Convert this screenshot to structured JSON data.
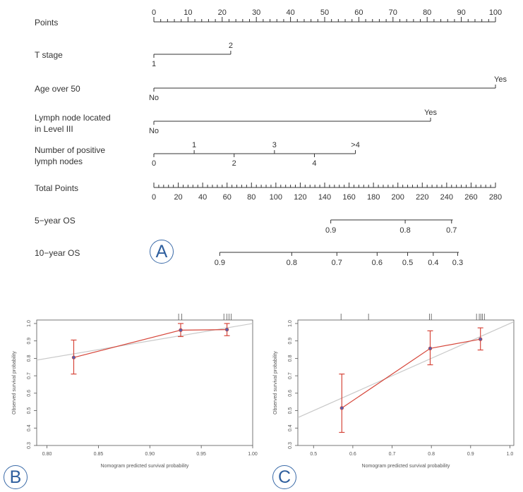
{
  "panels": {
    "a_letter": "A",
    "b_letter": "B",
    "c_letter": "C"
  },
  "chart_data": [
    {
      "type": "nomogram",
      "panel": "A",
      "rows": [
        {
          "label": [
            "Points"
          ],
          "kind": "axis",
          "points_range": [
            0,
            100
          ],
          "ticks": [
            0,
            10,
            20,
            30,
            40,
            50,
            60,
            70,
            80,
            90,
            100
          ],
          "minor_step": 2
        },
        {
          "label": [
            "T stage"
          ],
          "kind": "variable",
          "levels": [
            {
              "text": "1",
              "points": 0,
              "side": "below"
            },
            {
              "text": "2",
              "points": 22.5,
              "side": "above"
            }
          ]
        },
        {
          "label": [
            "Age over 50"
          ],
          "kind": "variable",
          "levels": [
            {
              "text": "No",
              "points": 0,
              "side": "below"
            },
            {
              "text": "Yes",
              "points": 100,
              "side": "above"
            }
          ]
        },
        {
          "label": [
            "Lymph node located",
            "in Level III"
          ],
          "kind": "variable",
          "levels": [
            {
              "text": "No",
              "points": 0,
              "side": "below"
            },
            {
              "text": "Yes",
              "points": 81,
              "side": "above"
            }
          ]
        },
        {
          "label": [
            "Number of positive",
            "lymph nodes"
          ],
          "kind": "variable",
          "levels": [
            {
              "text": "0",
              "points": 0,
              "side": "below"
            },
            {
              "text": "1",
              "points": 11.8,
              "side": "above"
            },
            {
              "text": "2",
              "points": 23.5,
              "side": "below"
            },
            {
              "text": "3",
              "points": 35.3,
              "side": "above"
            },
            {
              "text": "4",
              "points": 47,
              "side": "below"
            },
            {
              "text": ">4",
              "points": 59,
              "side": "above"
            }
          ]
        },
        {
          "label": [
            "Total Points"
          ],
          "kind": "axis",
          "total_range": [
            0,
            280
          ],
          "ticks": [
            0,
            20,
            40,
            60,
            80,
            100,
            120,
            140,
            160,
            180,
            200,
            220,
            240,
            260,
            280
          ],
          "minor_step": 4
        },
        {
          "label": [
            "5−year OS"
          ],
          "kind": "prob",
          "range_total": [
            145,
            245
          ],
          "ticks": [
            {
              "text": "0.9",
              "total": 145
            },
            {
              "text": "0.8",
              "total": 206
            },
            {
              "text": "0.7",
              "total": 244
            }
          ]
        },
        {
          "label": [
            "10−year OS"
          ],
          "kind": "prob",
          "range_total": [
            54,
            250
          ],
          "ticks": [
            {
              "text": "0.9",
              "total": 54
            },
            {
              "text": "0.8",
              "total": 113
            },
            {
              "text": "0.7",
              "total": 150
            },
            {
              "text": "0.6",
              "total": 183
            },
            {
              "text": "0.5",
              "total": 208
            },
            {
              "text": "0.4",
              "total": 229
            },
            {
              "text": "0.3",
              "total": 249
            }
          ]
        }
      ]
    },
    {
      "type": "line",
      "panel": "B",
      "xlabel": "Nomogram predicted survival probability",
      "ylabel": "Observed survival probability",
      "xlim": [
        0.79,
        1.0
      ],
      "ylim": [
        0.3,
        1.02
      ],
      "xticks": [
        0.8,
        0.85,
        0.9,
        0.95,
        1.0
      ],
      "xtick_labels": [
        "0.80",
        "0.85",
        "0.90",
        "0.95",
        "1.00"
      ],
      "yticks": [
        0.3,
        0.4,
        0.5,
        0.6,
        0.7,
        0.8,
        0.9,
        1.0
      ],
      "ytick_labels": [
        "0.3",
        "0.4",
        "0.5",
        "0.6",
        "0.7",
        "0.8",
        "0.9",
        "1.0"
      ],
      "ideal_line": [
        [
          0.79,
          0.79
        ],
        [
          1.0,
          1.0
        ]
      ],
      "points": [
        {
          "x": 0.826,
          "y": 0.805,
          "lower": 0.71,
          "upper": 0.905
        },
        {
          "x": 0.93,
          "y": 0.962,
          "lower": 0.925,
          "upper": 1.0
        },
        {
          "x": 0.975,
          "y": 0.965,
          "lower": 0.93,
          "upper": 1.0
        }
      ],
      "rug": [
        0.928,
        0.931,
        0.972,
        0.975,
        0.977,
        0.979
      ],
      "colors": {
        "line": "#d6463a",
        "point": "#5a5fa8",
        "ideal": "#c9c9c9"
      }
    },
    {
      "type": "line",
      "panel": "C",
      "xlabel": "Nomogram predicted survival probability",
      "ylabel": "Observed survival probability",
      "xlim": [
        0.46,
        1.01
      ],
      "ylim": [
        0.3,
        1.02
      ],
      "xticks": [
        0.5,
        0.6,
        0.7,
        0.8,
        0.9,
        1.0
      ],
      "xtick_labels": [
        "0.5",
        "0.6",
        "0.7",
        "0.8",
        "0.9",
        "1.0"
      ],
      "yticks": [
        0.3,
        0.4,
        0.5,
        0.6,
        0.7,
        0.8,
        0.9,
        1.0
      ],
      "ytick_labels": [
        "0.3",
        "0.4",
        "0.5",
        "0.6",
        "0.7",
        "0.8",
        "0.9",
        "1.0"
      ],
      "ideal_line": [
        [
          0.46,
          0.46
        ],
        [
          1.01,
          1.01
        ]
      ],
      "points": [
        {
          "x": 0.572,
          "y": 0.515,
          "lower": 0.375,
          "upper": 0.71
        },
        {
          "x": 0.797,
          "y": 0.857,
          "lower": 0.763,
          "upper": 0.958
        },
        {
          "x": 0.925,
          "y": 0.91,
          "lower": 0.848,
          "upper": 0.975
        }
      ],
      "rug": [
        0.57,
        0.64,
        0.795,
        0.8,
        0.915,
        0.922,
        0.926,
        0.93,
        0.935
      ],
      "colors": {
        "line": "#d6463a",
        "point": "#5a5fa8",
        "ideal": "#c9c9c9"
      }
    }
  ]
}
